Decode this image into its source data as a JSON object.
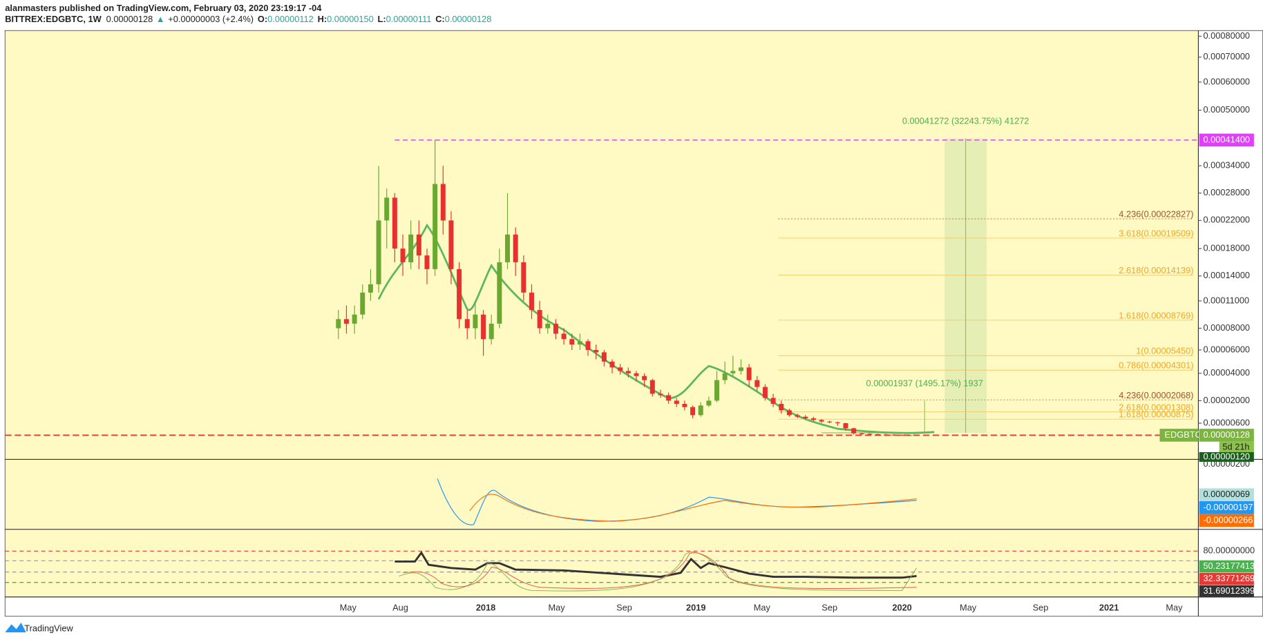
{
  "header": {
    "publisher": "alanmasters published on TradingView.com, February 03, 2020 23:19:17 -04",
    "symbol": "BITTREX:EDGBTC, 1W",
    "price": "0.00000128",
    "arrow": "▲",
    "change": "+0.00000003 (+2.4%)",
    "ohlc": [
      {
        "key": "O:",
        "value": "0.00000112"
      },
      {
        "key": "H:",
        "value": "0.00000150"
      },
      {
        "key": "L:",
        "value": "0.00000111"
      },
      {
        "key": "C:",
        "value": "0.00000128"
      }
    ]
  },
  "chart_data": {
    "type": "candlestick",
    "up_color": "#6aa832",
    "down_color": "#e8312f",
    "background": "#fff9c4",
    "open": [
      8e-05,
      9e-05,
      8.5e-05,
      9.5e-05,
      0.00012,
      0.00013,
      0.00022,
      0.00027,
      0.00018,
      0.00016,
      0.0002,
      0.00017,
      0.00015,
      0.0003,
      0.00022,
      0.00015,
      9e-05,
      8e-05,
      9.5e-05,
      7e-05,
      8.5e-05,
      0.00016,
      0.0002,
      0.00016,
      0.00012,
      0.0001,
      8e-05,
      8.5e-05,
      7.5e-05,
      7e-05,
      6.5e-05,
      6.8e-05,
      6e-05,
      5.8e-05,
      5e-05,
      4.5e-05,
      4.2e-05,
      4e-05,
      3.8e-05,
      3.5e-05,
      2.5e-05,
      2.4e-05,
      2e-05,
      1.8e-05,
      1.6e-05,
      1.1e-05,
      1.7e-05,
      2e-05,
      3.5e-05,
      4e-05,
      4.2e-05,
      4.5e-05,
      3.5e-05,
      3e-05,
      2.2e-05,
      1.8e-05,
      1.4e-05,
      1.1e-05,
      1e-05,
      9e-06,
      8e-06,
      7e-06,
      6.5e-06,
      6e-06,
      4e-06,
      2e-06,
      1.8e-06,
      1.7e-06,
      1.6e-06,
      1.5e-06,
      1.4e-06,
      1.12e-06
    ],
    "high": [
      0.0001,
      0.000105,
      0.000105,
      0.00013,
      0.00015,
      0.00034,
      0.00029,
      0.00028,
      0.0002,
      0.00022,
      0.00022,
      0.00018,
      0.000414,
      0.00034,
      0.00024,
      0.00016,
      0.0001,
      0.00011,
      0.0001,
      9.5e-05,
      0.00018,
      0.00028,
      0.00021,
      0.00017,
      0.00013,
      0.00011,
      9.5e-05,
      9e-05,
      8e-05,
      7.5e-05,
      7.5e-05,
      7e-05,
      6.5e-05,
      6e-05,
      5.2e-05,
      4.8e-05,
      4.5e-05,
      4.2e-05,
      4e-05,
      3.6e-05,
      2.8e-05,
      2.6e-05,
      2.2e-05,
      2e-05,
      1.7e-05,
      1.9e-05,
      2.3e-05,
      4.2e-05,
      5e-05,
      5.5e-05,
      5.2e-05,
      4.8e-05,
      3.8e-05,
      3.2e-05,
      2.5e-05,
      2e-05,
      1.5e-05,
      1.2e-05,
      1.1e-05,
      1e-05,
      8.5e-06,
      7.5e-06,
      7e-06,
      6.2e-06,
      4.2e-06,
      2.3e-06,
      2e-06,
      1.9e-06,
      1.8e-06,
      1.7e-06,
      1.55e-06,
      1.5e-06
    ],
    "low": [
      7e-05,
      7.5e-05,
      7.5e-05,
      9e-05,
      0.00011,
      0.00012,
      0.00018,
      0.00016,
      0.00014,
      0.00015,
      0.00015,
      0.00013,
      0.00014,
      0.0002,
      0.00013,
      8e-05,
      7e-05,
      7e-05,
      5.5e-05,
      6.5e-05,
      8e-05,
      0.00015,
      0.00014,
      0.00011,
      9e-05,
      7.5e-05,
      7.5e-05,
      7e-05,
      6.5e-05,
      6e-05,
      6e-05,
      5.5e-05,
      5.2e-05,
      4.6e-05,
      4e-05,
      3.9e-05,
      3.7e-05,
      3.4e-05,
      3e-05,
      2.3e-05,
      2.2e-05,
      1.8e-05,
      1.6e-05,
      1.4e-05,
      9e-06,
      1e-05,
      1.6e-05,
      1.9e-05,
      3.2e-05,
      3.8e-05,
      3.9e-05,
      3e-05,
      2.7e-05,
      2e-05,
      1.6e-05,
      1.2e-05,
      1e-05,
      9e-06,
      8e-06,
      7e-06,
      6.2e-06,
      6e-06,
      5e-06,
      3e-06,
      1.5e-06,
      1.5e-06,
      1.5e-06,
      1.4e-06,
      1.3e-06,
      1.25e-06,
      1.2e-06,
      1.11e-06
    ],
    "close": [
      9e-05,
      8.5e-05,
      9.5e-05,
      0.00012,
      0.00013,
      0.00022,
      0.00027,
      0.00018,
      0.00016,
      0.0002,
      0.00017,
      0.00015,
      0.0003,
      0.00022,
      0.00015,
      9e-05,
      8e-05,
      9.5e-05,
      7e-05,
      8.5e-05,
      0.00016,
      0.0002,
      0.00016,
      0.00012,
      0.0001,
      8e-05,
      8.5e-05,
      7.5e-05,
      7e-05,
      6.5e-05,
      6.8e-05,
      6e-05,
      5.8e-05,
      5e-05,
      4.5e-05,
      4.2e-05,
      4e-05,
      3.8e-05,
      3.5e-05,
      2.5e-05,
      2.4e-05,
      2e-05,
      1.8e-05,
      1.6e-05,
      1.1e-05,
      1.7e-05,
      2e-05,
      3.5e-05,
      4e-05,
      4.2e-05,
      4.5e-05,
      3.5e-05,
      3e-05,
      2.2e-05,
      1.8e-05,
      1.4e-05,
      1.1e-05,
      1e-05,
      9e-06,
      8e-06,
      7e-06,
      6.5e-06,
      6e-06,
      4e-06,
      2e-06,
      1.8e-06,
      1.7e-06,
      1.6e-06,
      1.5e-06,
      1.4e-06,
      1.35e-06,
      1.28e-06
    ],
    "xticks": [
      "May",
      "Aug",
      "2018",
      "May",
      "Sep",
      "2019",
      "May",
      "Sep",
      "2020",
      "May",
      "Sep",
      "2021",
      "May"
    ],
    "yticks": [
      {
        "value": 0.0008,
        "label": "0.00080000"
      },
      {
        "value": 0.0007,
        "label": "0.00070000"
      },
      {
        "value": 0.0006,
        "label": "0.00060000"
      },
      {
        "value": 0.0005,
        "label": "0.00050000"
      },
      {
        "value": 0.00034,
        "label": "0.00034000"
      },
      {
        "value": 0.00028,
        "label": "0.00028000"
      },
      {
        "value": 0.00022,
        "label": "0.00022000"
      },
      {
        "value": 0.00018,
        "label": "0.00018000"
      },
      {
        "value": 0.00014,
        "label": "0.00014000"
      },
      {
        "value": 0.00011,
        "label": "0.00011000"
      },
      {
        "value": 8e-05,
        "label": "0.00008000"
      },
      {
        "value": 6e-05,
        "label": "0.00006000"
      },
      {
        "value": 4e-05,
        "label": "0.00004000"
      },
      {
        "value": 2e-05,
        "label": "0.00002000"
      },
      {
        "value": 6e-06,
        "label": "0.00000600"
      }
    ],
    "hline": {
      "value": 0.000414,
      "label": "0.00041400",
      "color": "#e040fb"
    },
    "last_price": {
      "symbol": "EDGBTC",
      "label": "0.00000128",
      "countdown": "5d 21h",
      "low_label": "0.00000120",
      "pane_label": "0.00000200"
    },
    "measures": [
      "0.00041272 (32243.75%) 41272",
      "0.00001937 (1495.17%) 1937"
    ],
    "fib_levels": [
      "4.236(0.00022827)",
      "3.618(0.00019509)",
      "2.618(0.00014139)",
      "1.618(0.00008769)",
      "1(0.00005450)",
      "0.786(0.00004301)",
      "4.236(0.00002068)",
      "2.618(0.00001308)",
      "1.618(0.00000875)"
    ],
    "macd_labels": [
      "0.00000069",
      "-0.00000197",
      "-0.00000266"
    ],
    "rsi": {
      "tick": "80.00000000",
      "labels": [
        "50.23177413",
        "32.33771269",
        "31.69012399"
      ]
    }
  },
  "footer": {
    "brand": "TradingView"
  }
}
